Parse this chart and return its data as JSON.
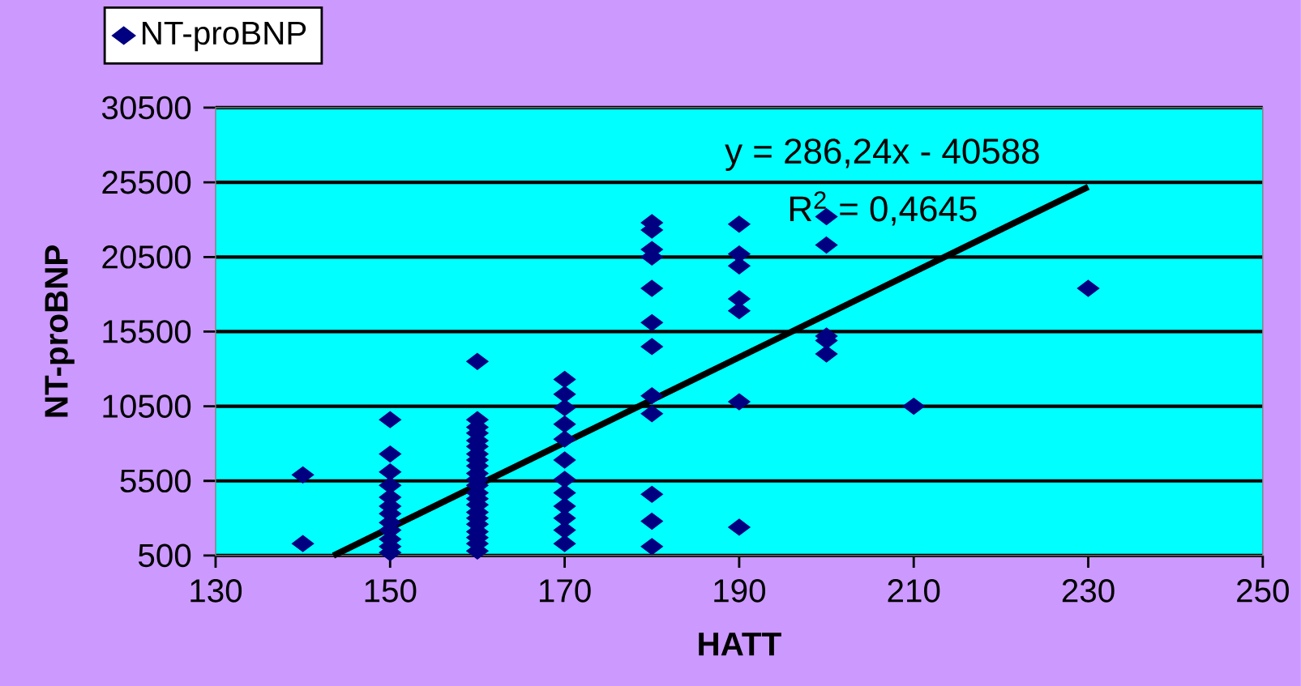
{
  "chart_data": {
    "type": "scatter",
    "xlabel": "HATT",
    "ylabel": "NT-proBNP",
    "xlim": [
      130,
      250
    ],
    "xticks": [
      130,
      150,
      170,
      190,
      210,
      230,
      250
    ],
    "ylim": [
      500,
      30500
    ],
    "yticks": [
      500,
      5500,
      10500,
      15500,
      20500,
      25500,
      30500
    ],
    "grid": "y",
    "legend": "top left",
    "marker": "diamond",
    "x": [
      140,
      140,
      150,
      150,
      150,
      150,
      150,
      150,
      150,
      150,
      150,
      150,
      150,
      150,
      160,
      160,
      160,
      160,
      160,
      160,
      160,
      160,
      160,
      160,
      160,
      160,
      160,
      160,
      160,
      160,
      160,
      160,
      160,
      160,
      160,
      160,
      170,
      170,
      170,
      170,
      170,
      170,
      170,
      170,
      170,
      170,
      170,
      170,
      180,
      180,
      180,
      180,
      180,
      180,
      180,
      180,
      180,
      180,
      180,
      180,
      190,
      190,
      190,
      190,
      190,
      190,
      190,
      200,
      200,
      200,
      200,
      200,
      210,
      230
    ],
    "series": [
      {
        "name": "NT-proBNP",
        "color": "#000080",
        "values": [
          5900,
          1300,
          9600,
          7300,
          6100,
          5200,
          4400,
          3800,
          3300,
          2700,
          2200,
          1600,
          1100,
          700,
          13500,
          9600,
          9100,
          8700,
          8200,
          7800,
          7300,
          6900,
          6500,
          6000,
          5600,
          5200,
          4700,
          4300,
          3900,
          3400,
          3000,
          2600,
          2100,
          1700,
          1300,
          800,
          12300,
          11300,
          10400,
          9300,
          8300,
          6900,
          5600,
          4700,
          3800,
          3000,
          2200,
          1300,
          22800,
          22300,
          21000,
          20500,
          18400,
          16100,
          14500,
          11200,
          10000,
          4600,
          2800,
          1100,
          22700,
          20700,
          19900,
          17700,
          16900,
          10800,
          2400,
          23200,
          21300,
          15200,
          14900,
          14000,
          10500,
          18400
        ]
      },
      {
        "type": "line",
        "color": "#000000",
        "marker": "none",
        "x": [
          143.5,
          230
        ],
        "values": [
          500,
          25200
        ]
      }
    ],
    "annotations": [
      "y = 286,24x - 40588",
      "R$^{2}$ = 0,4645"
    ]
  }
}
